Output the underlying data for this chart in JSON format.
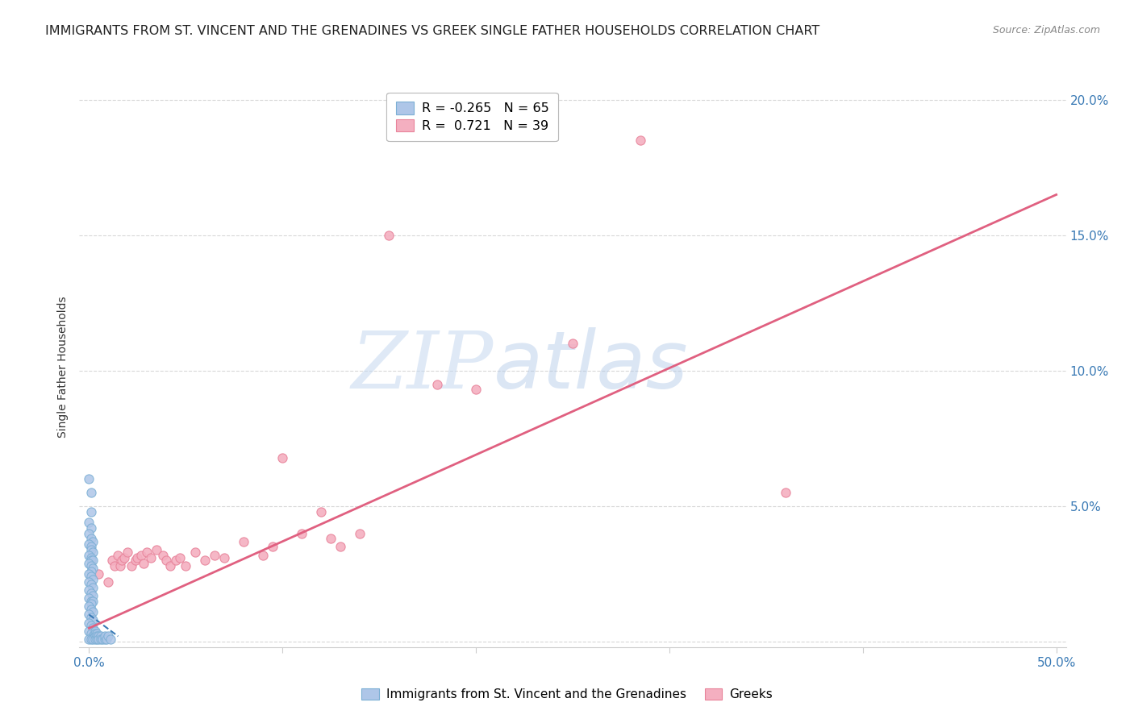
{
  "title": "IMMIGRANTS FROM ST. VINCENT AND THE GRENADINES VS GREEK SINGLE FATHER HOUSEHOLDS CORRELATION CHART",
  "source": "Source: ZipAtlas.com",
  "ylabel": "Single Father Households",
  "x_ticks": [
    0.0,
    0.1,
    0.2,
    0.3,
    0.4,
    0.5
  ],
  "x_tick_labels_bottom": [
    "0.0%",
    "",
    "",
    "",
    "",
    "50.0%"
  ],
  "y_ticks": [
    0.0,
    0.05,
    0.1,
    0.15,
    0.2
  ],
  "y_tick_labels_right": [
    "",
    "5.0%",
    "10.0%",
    "15.0%",
    "20.0%"
  ],
  "xlim": [
    -0.005,
    0.505
  ],
  "ylim": [
    -0.002,
    0.205
  ],
  "legend_label_1": "Immigrants from St. Vincent and the Grenadines",
  "legend_label_2": "Greeks",
  "legend_color_1": "#aec6e8",
  "legend_color_2": "#f4afc0",
  "legend_edge_1": "#7bafd4",
  "legend_edge_2": "#e8839a",
  "blue_scatter": [
    [
      0.0,
      0.06
    ],
    [
      0.001,
      0.055
    ],
    [
      0.001,
      0.048
    ],
    [
      0.0,
      0.044
    ],
    [
      0.001,
      0.042
    ],
    [
      0.0,
      0.04
    ],
    [
      0.001,
      0.038
    ],
    [
      0.002,
      0.037
    ],
    [
      0.0,
      0.036
    ],
    [
      0.001,
      0.035
    ],
    [
      0.001,
      0.034
    ],
    [
      0.002,
      0.033
    ],
    [
      0.0,
      0.032
    ],
    [
      0.001,
      0.031
    ],
    [
      0.001,
      0.03
    ],
    [
      0.002,
      0.03
    ],
    [
      0.0,
      0.029
    ],
    [
      0.001,
      0.028
    ],
    [
      0.002,
      0.027
    ],
    [
      0.001,
      0.026
    ],
    [
      0.0,
      0.025
    ],
    [
      0.001,
      0.024
    ],
    [
      0.002,
      0.023
    ],
    [
      0.0,
      0.022
    ],
    [
      0.001,
      0.021
    ],
    [
      0.002,
      0.02
    ],
    [
      0.0,
      0.019
    ],
    [
      0.001,
      0.018
    ],
    [
      0.002,
      0.017
    ],
    [
      0.0,
      0.016
    ],
    [
      0.001,
      0.015
    ],
    [
      0.002,
      0.015
    ],
    [
      0.001,
      0.014
    ],
    [
      0.0,
      0.013
    ],
    [
      0.001,
      0.012
    ],
    [
      0.002,
      0.011
    ],
    [
      0.0,
      0.01
    ],
    [
      0.001,
      0.009
    ],
    [
      0.002,
      0.008
    ],
    [
      0.0,
      0.007
    ],
    [
      0.001,
      0.006
    ],
    [
      0.002,
      0.005
    ],
    [
      0.0,
      0.004
    ],
    [
      0.001,
      0.003
    ],
    [
      0.002,
      0.002
    ],
    [
      0.0,
      0.001
    ],
    [
      0.001,
      0.001
    ],
    [
      0.002,
      0.001
    ],
    [
      0.003,
      0.004
    ],
    [
      0.003,
      0.003
    ],
    [
      0.003,
      0.002
    ],
    [
      0.003,
      0.001
    ],
    [
      0.004,
      0.003
    ],
    [
      0.004,
      0.002
    ],
    [
      0.004,
      0.001
    ],
    [
      0.005,
      0.002
    ],
    [
      0.005,
      0.001
    ],
    [
      0.006,
      0.002
    ],
    [
      0.006,
      0.001
    ],
    [
      0.007,
      0.001
    ],
    [
      0.008,
      0.001
    ],
    [
      0.008,
      0.002
    ],
    [
      0.009,
      0.001
    ],
    [
      0.01,
      0.002
    ],
    [
      0.011,
      0.001
    ]
  ],
  "pink_scatter": [
    [
      0.005,
      0.025
    ],
    [
      0.01,
      0.022
    ],
    [
      0.012,
      0.03
    ],
    [
      0.013,
      0.028
    ],
    [
      0.015,
      0.032
    ],
    [
      0.016,
      0.028
    ],
    [
      0.017,
      0.03
    ],
    [
      0.018,
      0.031
    ],
    [
      0.02,
      0.033
    ],
    [
      0.022,
      0.028
    ],
    [
      0.024,
      0.03
    ],
    [
      0.025,
      0.031
    ],
    [
      0.027,
      0.032
    ],
    [
      0.028,
      0.029
    ],
    [
      0.03,
      0.033
    ],
    [
      0.032,
      0.031
    ],
    [
      0.035,
      0.034
    ],
    [
      0.038,
      0.032
    ],
    [
      0.04,
      0.03
    ],
    [
      0.042,
      0.028
    ],
    [
      0.045,
      0.03
    ],
    [
      0.047,
      0.031
    ],
    [
      0.05,
      0.028
    ],
    [
      0.055,
      0.033
    ],
    [
      0.06,
      0.03
    ],
    [
      0.065,
      0.032
    ],
    [
      0.07,
      0.031
    ],
    [
      0.08,
      0.037
    ],
    [
      0.09,
      0.032
    ],
    [
      0.095,
      0.035
    ],
    [
      0.1,
      0.068
    ],
    [
      0.11,
      0.04
    ],
    [
      0.12,
      0.048
    ],
    [
      0.125,
      0.038
    ],
    [
      0.13,
      0.035
    ],
    [
      0.14,
      0.04
    ],
    [
      0.155,
      0.15
    ],
    [
      0.18,
      0.095
    ],
    [
      0.2,
      0.093
    ],
    [
      0.25,
      0.11
    ],
    [
      0.285,
      0.185
    ],
    [
      0.36,
      0.055
    ]
  ],
  "blue_line_x": [
    0.0,
    0.015
  ],
  "blue_line_y": [
    0.01,
    0.002
  ],
  "pink_line_x": [
    0.0,
    0.5
  ],
  "pink_line_y": [
    0.005,
    0.165
  ],
  "watermark_zip": "ZIP",
  "watermark_atlas": "atlas",
  "background_color": "#ffffff",
  "grid_color": "#d8d8d8",
  "title_fontsize": 11.5,
  "axis_tick_fontsize": 11,
  "ylabel_fontsize": 10,
  "scatter_size": 65
}
